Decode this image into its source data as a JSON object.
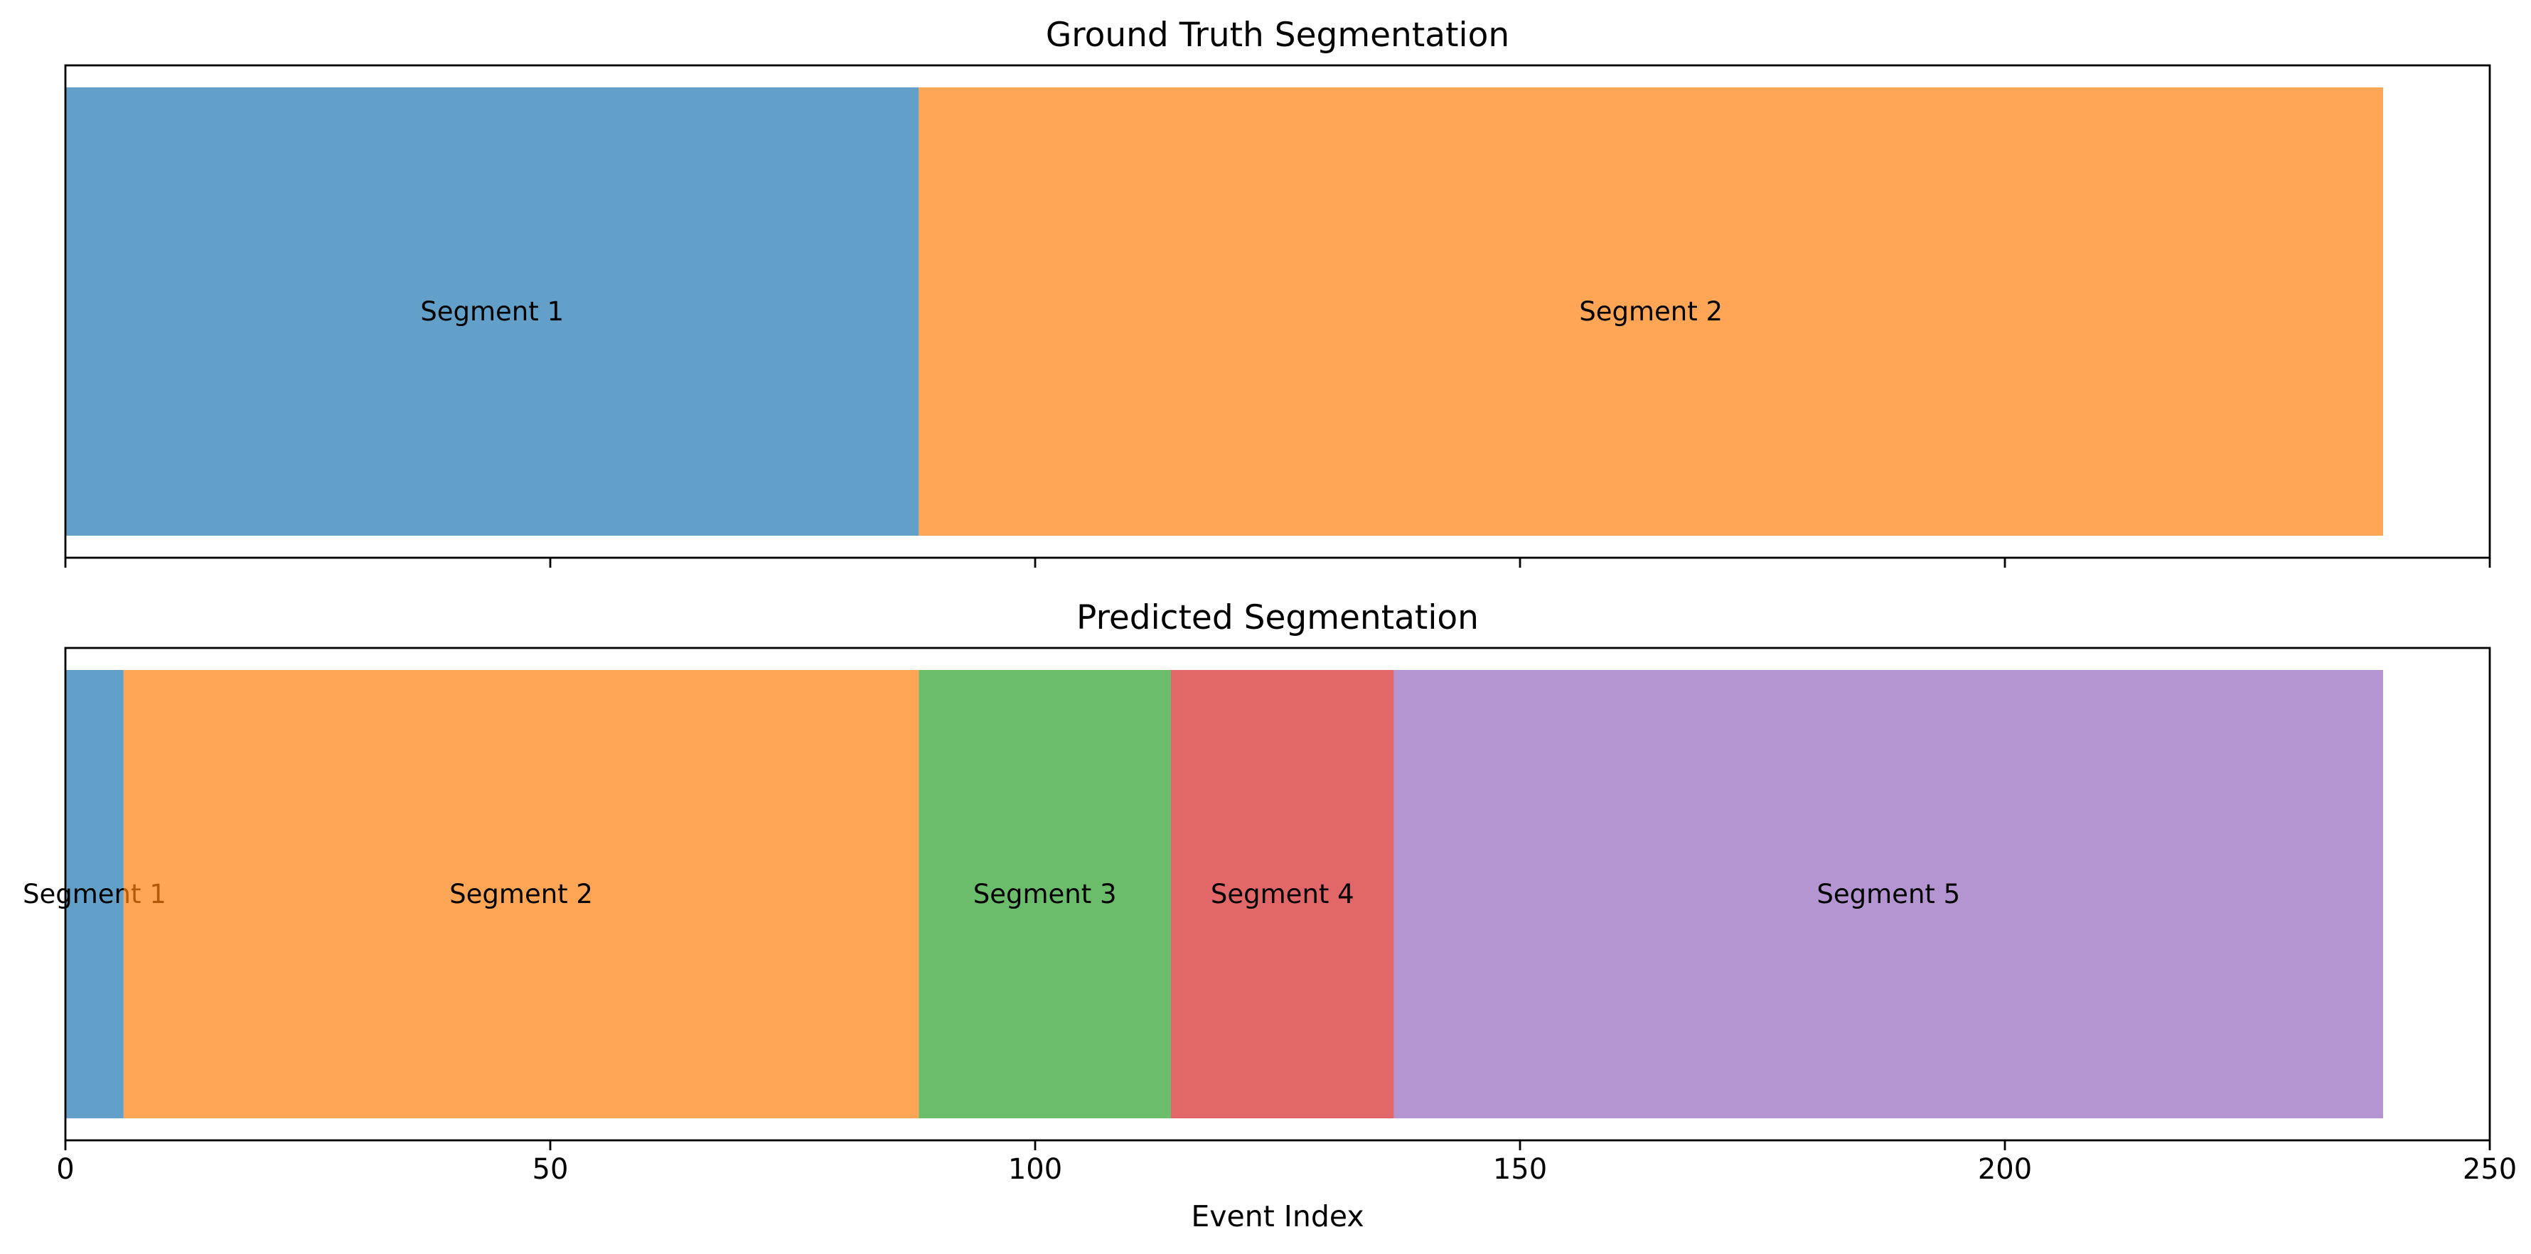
{
  "chart_data": [
    {
      "type": "bar",
      "orientation": "horizontal-segments",
      "title": "Ground Truth Segmentation",
      "segments": [
        {
          "label": "Segment 1",
          "start": 0,
          "end": 88,
          "color": "#1f77b4"
        },
        {
          "label": "Segment 2",
          "start": 88,
          "end": 239,
          "color": "#ff7f0e"
        }
      ],
      "xlim": [
        0,
        250
      ],
      "xticks": [
        0,
        50,
        100,
        150,
        200,
        250
      ],
      "show_tick_labels": false,
      "segment_opacity": 0.7,
      "grid": false
    },
    {
      "type": "bar",
      "orientation": "horizontal-segments",
      "title": "Predicted Segmentation",
      "segments": [
        {
          "label": "Segment 1",
          "start": 0,
          "end": 6,
          "color": "#1f77b4"
        },
        {
          "label": "Segment 2",
          "start": 6,
          "end": 88,
          "color": "#ff7f0e"
        },
        {
          "label": "Segment 3",
          "start": 88,
          "end": 114,
          "color": "#2ca02c"
        },
        {
          "label": "Segment 4",
          "start": 114,
          "end": 137,
          "color": "#d62728"
        },
        {
          "label": "Segment 5",
          "start": 137,
          "end": 239,
          "color": "#9467bd"
        }
      ],
      "xlim": [
        0,
        250
      ],
      "xticks": [
        0,
        50,
        100,
        150,
        200,
        250
      ],
      "show_tick_labels": true,
      "xlabel": "Event Index",
      "segment_opacity": 0.7,
      "grid": false
    }
  ]
}
